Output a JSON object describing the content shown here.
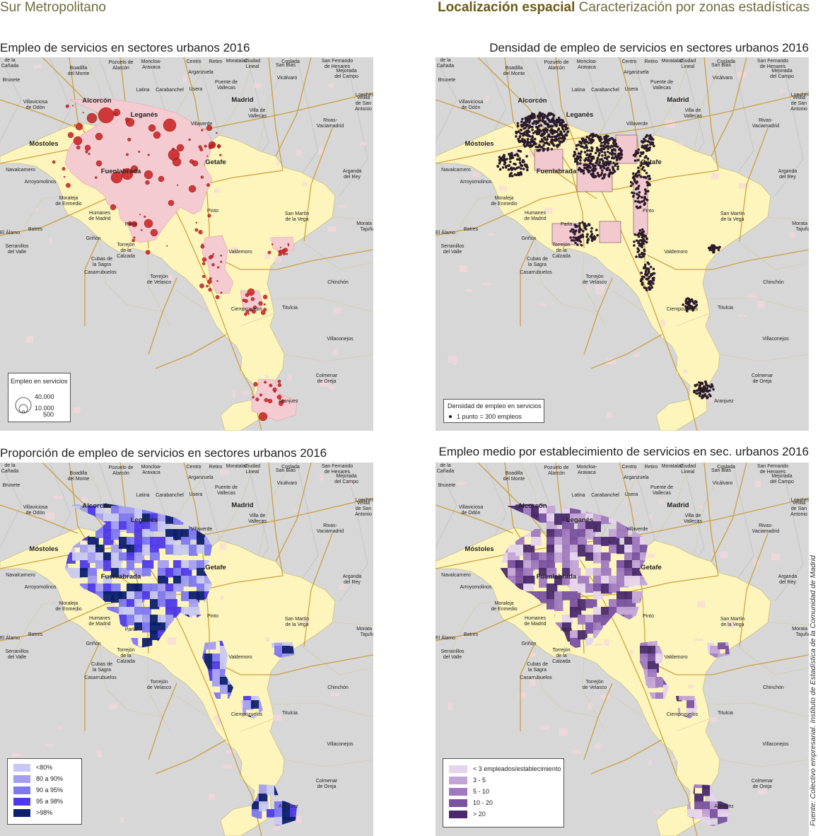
{
  "header": {
    "left": "Sur Metropolitano",
    "right_bold": "Localización espacial",
    "right_rest": "Caracterización por zonas estadísticas"
  },
  "panels": [
    {
      "title": "Empleo de servicios en sectores urbanos 2016",
      "legend": {
        "title": "Empleo en servicios",
        "values": [
          "40.000",
          "10.000",
          "500"
        ]
      }
    },
    {
      "title": "Densidad de empleo de servicios en sectores urbanos 2016",
      "legend": {
        "title": "Densidad de empleo en servicios",
        "item": "1 punto = 300 empleos"
      }
    },
    {
      "title": "Proporción de empleo de servicios en sectores urbanos 2016",
      "legend": {
        "classes": [
          "<80%",
          "80 a 90%",
          "90 a 95%",
          "95 a 98%",
          ">98%"
        ],
        "colors": [
          "#c8c8f0",
          "#a49ef0",
          "#7f78f0",
          "#4f3ae8",
          "#0c1f6b"
        ]
      }
    },
    {
      "title": "Empleo medio por establecimiento de servicios en sec. urbanos 2016",
      "legend": {
        "classes": [
          "< 3 empleados/establecimiento",
          "3 - 5",
          "5 - 10",
          "10 - 20",
          "> 20"
        ],
        "colors": [
          "#e6d4ec",
          "#c3a4d6",
          "#a07ac0",
          "#7a52a0",
          "#4a2a6c"
        ]
      }
    }
  ],
  "places_bold": [
    "Alcorcón",
    "Leganés",
    "Móstoles",
    "Getafe",
    "Fuenlabrada",
    "Madrid"
  ],
  "places": [
    "Villanueva\nde la\nCañada",
    "Boadilla\ndel Monte",
    "Pozuelo de\nAlarcón",
    "Moncloa-\nAravaca",
    "Centro",
    "Retiro",
    "Moratalaz",
    "Ciudad\nLineal",
    "Coslada",
    "San Fernando\nde Henares",
    "Brunete",
    "San Blas",
    "Mejorada\ndel Campo",
    "Arganzuela",
    "Vicálvaro",
    "Latina",
    "Carabanchel",
    "Usera",
    "Puente de\nVallecas",
    "Loeches",
    "Velilla\nde San\nAntonio",
    "Villaviciosa\nde Odón",
    "Villa de\nVallecas",
    "Villaverde",
    "Rivas-\nVaciamadrid",
    "Navalcarnero",
    "Arganda\ndel Rey",
    "Arroyomolinos",
    "Moraleja\nde Enmedio",
    "Humanes\nde Madrid",
    "Parla",
    "Pinto",
    "San Martín\nde la Vega",
    "El Álamo",
    "Batres",
    "Morata de\nTajuña",
    "Griñón",
    "Torrejón\nde la\nCalzada",
    "Serranillos\ndel Valle",
    "Cubas de\nla Sagra",
    "Valdemoro",
    "Casarrubuelos",
    "Torrejón\nde Velasco",
    "Chinchón",
    "Ciempozuelos",
    "Titulcia",
    "Villaconejos",
    "Colmenar\nde Oreja",
    "Aranjuez"
  ],
  "source": "Fuente: Colectivo empresarial. Instituto de Estadística de la Comunidad de Madrid",
  "colors": {
    "region": "#fdf5bc",
    "outside": "#d7d7d7",
    "urban_pink": "#f4cbd1",
    "circles": "#c81e1e",
    "dots": "#2a1a2a",
    "roads": "#c8962a",
    "header_text": "#6e6a3a"
  }
}
